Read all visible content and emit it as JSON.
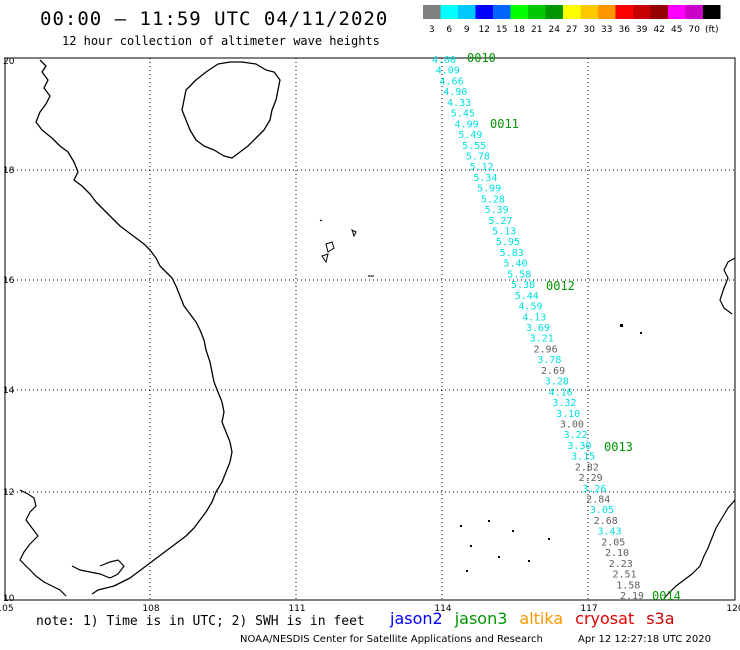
{
  "title": "00:00 – 11:59 UTC 04/11/2020",
  "subtitle": "12 hour collection of altimeter wave heights",
  "scale": {
    "colors": [
      "#808080",
      "#00ffff",
      "#00c8ff",
      "#0000ff",
      "#0064ff",
      "#00ff00",
      "#00c800",
      "#009600",
      "#ffff00",
      "#ffc800",
      "#ff9600",
      "#ff0000",
      "#c80000",
      "#960000",
      "#ff00ff",
      "#c800c8",
      "#000000"
    ],
    "labels": [
      "3",
      "6",
      "9",
      "12",
      "15",
      "18",
      "21",
      "24",
      "27",
      "30",
      "33",
      "36",
      "39",
      "42",
      "45",
      "70",
      "(ft)"
    ]
  },
  "map": {
    "lon_labels": [
      "105",
      "108",
      "111",
      "114",
      "117",
      "120"
    ],
    "lat_labels": [
      "20",
      "18",
      "16",
      "14",
      "12",
      "10"
    ],
    "lon_range": [
      105,
      120
    ],
    "lat_range": [
      10,
      20
    ],
    "color_cyan": "#00e0e0",
    "color_gray": "#606060",
    "color_green": "#009600",
    "track": [
      {
        "v": "4.00",
        "c": "c"
      },
      {
        "v": "4.09",
        "c": "c"
      },
      {
        "v": "4.66",
        "c": "c"
      },
      {
        "v": "4.90",
        "c": "c"
      },
      {
        "v": "4.33",
        "c": "c"
      },
      {
        "v": "5.45",
        "c": "c"
      },
      {
        "v": "4.99",
        "c": "c"
      },
      {
        "v": "5.49",
        "c": "c"
      },
      {
        "v": "5.55",
        "c": "c"
      },
      {
        "v": "5.78",
        "c": "c"
      },
      {
        "v": "5.12",
        "c": "c"
      },
      {
        "v": "5.34",
        "c": "c"
      },
      {
        "v": "5.99",
        "c": "c"
      },
      {
        "v": "5.28",
        "c": "c"
      },
      {
        "v": "5.39",
        "c": "c"
      },
      {
        "v": "5.27",
        "c": "c"
      },
      {
        "v": "5.13",
        "c": "c"
      },
      {
        "v": "5.95",
        "c": "c"
      },
      {
        "v": "5.83",
        "c": "c"
      },
      {
        "v": "5.40",
        "c": "c"
      },
      {
        "v": "5.58",
        "c": "c"
      },
      {
        "v": "5.38",
        "c": "c"
      },
      {
        "v": "5.44",
        "c": "c"
      },
      {
        "v": "4.59",
        "c": "c"
      },
      {
        "v": "4.13",
        "c": "c"
      },
      {
        "v": "3.69",
        "c": "c"
      },
      {
        "v": "3.21",
        "c": "c"
      },
      {
        "v": "2.96",
        "c": "g"
      },
      {
        "v": "3.78",
        "c": "c"
      },
      {
        "v": "2.69",
        "c": "g"
      },
      {
        "v": "3.28",
        "c": "c"
      },
      {
        "v": "4.16",
        "c": "c"
      },
      {
        "v": "3.32",
        "c": "c"
      },
      {
        "v": "3.10",
        "c": "c"
      },
      {
        "v": "3.00",
        "c": "g"
      },
      {
        "v": "3.22",
        "c": "c"
      },
      {
        "v": "3.30",
        "c": "c"
      },
      {
        "v": "3.15",
        "c": "c"
      },
      {
        "v": "2.82",
        "c": "g"
      },
      {
        "v": "2.29",
        "c": "g"
      },
      {
        "v": "3.26",
        "c": "c"
      },
      {
        "v": "2.84",
        "c": "g"
      },
      {
        "v": "3.05",
        "c": "c"
      },
      {
        "v": "2.68",
        "c": "g"
      },
      {
        "v": "3.43",
        "c": "c"
      },
      {
        "v": "2.05",
        "c": "g"
      },
      {
        "v": "2.10",
        "c": "g"
      },
      {
        "v": "2.23",
        "c": "g"
      },
      {
        "v": "2.51",
        "c": "g"
      },
      {
        "v": "1.58",
        "c": "g"
      },
      {
        "v": "2.19",
        "c": "g"
      }
    ],
    "time_labels": [
      "0010",
      "0011",
      "0012",
      "0013",
      "0014"
    ]
  },
  "note": "note: 1) Time is in UTC; 2) SWH is in feet",
  "satellites": [
    {
      "name": "jason2",
      "color": "#0000ff"
    },
    {
      "name": "jason3",
      "color": "#009600"
    },
    {
      "name": "altika",
      "color": "#ff9600"
    },
    {
      "name": "cryosat",
      "color": "#e00000"
    },
    {
      "name": "s3a",
      "color": "#c80000"
    }
  ],
  "credit": "NOAA/NESDIS Center for Satellite Applications and Research",
  "credit_time": "Apr 12 12:27:18 UTC 2020"
}
